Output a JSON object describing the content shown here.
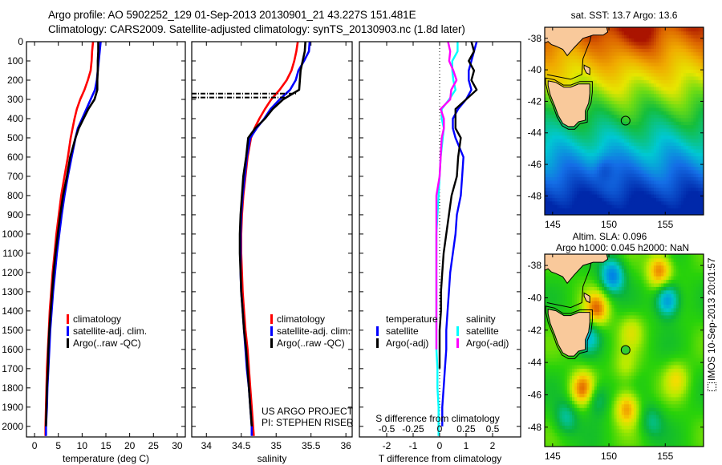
{
  "header": {
    "title_line1": "Argo profile: AO 5902252_129 01-Sep-2013 20130901_21 43.227S 151.481E",
    "title_line2": "Climatology: CARS2009. Satellite-adjusted climatology: synTS_20130903.nc (1.8d later)"
  },
  "stamp": "IMOS 10-Sep-2013 20:01:57",
  "colors": {
    "climatology": "#ff0000",
    "satellite": "#0000ff",
    "argo": "#000000",
    "sal_satellite": "#00ffff",
    "sal_argo": "#ff00ff",
    "land": "#f9c99b"
  },
  "chart_data": [
    {
      "type": "line",
      "id": "temperature",
      "xlabel": "temperature (deg C)",
      "ylabel": "",
      "xlim": [
        -1.7,
        31.7
      ],
      "ylim": [
        2055,
        0
      ],
      "xticks": [
        0,
        5,
        10,
        15,
        20,
        25,
        30
      ],
      "yticks": [
        0,
        100,
        200,
        300,
        400,
        500,
        600,
        700,
        800,
        900,
        1000,
        1100,
        1200,
        1300,
        1400,
        1500,
        1600,
        1700,
        1800,
        1900,
        2000
      ],
      "legend": [
        "climatology",
        "satellite-adj. clim.",
        "Argo(..raw -QC)"
      ],
      "legend_position": "lower-middle",
      "depth": [
        0,
        50,
        100,
        150,
        200,
        250,
        300,
        350,
        400,
        450,
        500,
        600,
        700,
        800,
        900,
        1000,
        1100,
        1200,
        1300,
        1400,
        1500,
        1600,
        1700,
        1800,
        1900,
        2000,
        2050
      ],
      "series": [
        {
          "name": "climatology",
          "values": [
            12.3,
            12.1,
            12.0,
            11.8,
            11.2,
            10.5,
            9.6,
            8.9,
            8.4,
            8.0,
            7.6,
            7.0,
            6.3,
            5.6,
            5.1,
            4.6,
            4.2,
            3.8,
            3.5,
            3.2,
            3.0,
            2.8,
            2.6,
            2.5,
            2.4,
            2.3,
            2.3
          ]
        },
        {
          "name": "satellite-adj. clim.",
          "values": [
            13.9,
            13.7,
            13.5,
            13.3,
            13.1,
            12.7,
            11.8,
            10.9,
            10.0,
            9.1,
            8.6,
            7.8,
            7.0,
            6.3,
            5.7,
            5.2,
            4.7,
            4.3,
            3.9,
            3.6,
            3.3,
            3.1,
            2.9,
            2.7,
            2.6,
            2.4,
            2.4
          ]
        },
        {
          "name": "Argo(..raw -QC)",
          "values": [
            13.4,
            13.4,
            13.3,
            13.3,
            13.2,
            13.2,
            12.6,
            11.3,
            10.3,
            9.3,
            8.6,
            7.5,
            6.8,
            6.0,
            5.4,
            4.9,
            4.4,
            4.0,
            3.7,
            3.4,
            3.1,
            2.9,
            2.8,
            2.6,
            2.5,
            2.4,
            null
          ]
        }
      ]
    },
    {
      "type": "line",
      "id": "salinity",
      "xlabel": "salinity",
      "xlim": [
        33.79,
        36.09
      ],
      "ylim": [
        2055,
        0
      ],
      "xticks": [
        34,
        34.5,
        35,
        35.5,
        36
      ],
      "legend": [
        "climatology",
        "satellite-adj. clim.",
        "Argo(..raw -QC)"
      ],
      "legend_position": "lower-right",
      "annotations": [
        "US ARGO PROJECT",
        "PI: STEPHEN RISER"
      ],
      "depth": [
        0,
        50,
        100,
        150,
        200,
        250,
        300,
        350,
        400,
        450,
        500,
        600,
        700,
        800,
        900,
        1000,
        1100,
        1200,
        1300,
        1400,
        1500,
        1600,
        1700,
        1800,
        1900,
        2000,
        2050
      ],
      "series": [
        {
          "name": "climatology",
          "values": [
            35.31,
            35.29,
            35.26,
            35.22,
            35.15,
            35.05,
            34.93,
            34.84,
            34.76,
            34.69,
            34.64,
            34.59,
            34.56,
            34.53,
            34.51,
            34.5,
            34.5,
            34.51,
            34.52,
            34.54,
            34.56,
            34.59,
            34.61,
            34.63,
            34.65,
            34.67,
            34.68
          ]
        },
        {
          "name": "satellite-adj. clim.",
          "values": [
            35.48,
            35.47,
            35.4,
            35.32,
            35.28,
            35.2,
            35.05,
            34.92,
            34.83,
            34.72,
            34.63,
            34.58,
            34.55,
            34.52,
            34.5,
            34.49,
            34.49,
            34.49,
            34.5,
            34.52,
            34.54,
            34.56,
            34.58,
            34.61,
            34.63,
            34.65,
            34.65
          ]
        },
        {
          "name": "Argo(..raw -QC)",
          "values": [
            35.42,
            35.41,
            35.38,
            35.35,
            35.34,
            35.33,
            35.1,
            34.95,
            34.84,
            34.7,
            34.6,
            34.57,
            34.53,
            34.51,
            34.49,
            34.48,
            34.48,
            34.49,
            34.5,
            34.52,
            34.54,
            34.57,
            34.59,
            34.61,
            34.63,
            34.65,
            null
          ]
        }
      ],
      "flagged_segment": {
        "depths": [
          270,
          290
        ],
        "from": 33.79,
        "to": 35.3
      }
    },
    {
      "type": "line",
      "id": "difference",
      "xlabel": "T difference from climatology",
      "xlabel_top": "S difference from climatology",
      "xlim": [
        -3.03,
        3.06
      ],
      "xlim_top": [
        -0.757,
        0.765
      ],
      "ylim": [
        2055,
        0
      ],
      "xticks": [
        -2,
        -1,
        0,
        1,
        2
      ],
      "xticks_top": [
        -0.5,
        -0.25,
        0,
        0.25,
        0.5
      ],
      "legend_groups": [
        {
          "title": "temperature",
          "items": [
            "satellite",
            "Argo(-adj)"
          ]
        },
        {
          "title": "salinity",
          "items": [
            "satellite",
            "Argo(-adj)"
          ]
        }
      ],
      "depth": [
        0,
        50,
        100,
        150,
        200,
        250,
        300,
        350,
        400,
        450,
        500,
        600,
        700,
        800,
        900,
        1000,
        1100,
        1200,
        1300,
        1400,
        1500,
        1600,
        1700,
        1800,
        1900,
        2000,
        2050
      ],
      "series": [
        {
          "name": "T satellite",
          "axis": "T",
          "values": [
            1.4,
            1.3,
            1.2,
            1.1,
            1.1,
            1.2,
            1.0,
            0.7,
            0.5,
            0.5,
            0.6,
            0.9,
            0.85,
            0.8,
            0.65,
            0.6,
            0.5,
            0.4,
            0.35,
            0.3,
            0.25,
            0.25,
            0.2,
            0.15,
            0.1,
            0.1,
            null
          ]
        },
        {
          "name": "T Argo(-adj)",
          "axis": "T",
          "values": [
            1.2,
            1.3,
            1.1,
            1.3,
            1.2,
            1.4,
            1.0,
            0.6,
            0.6,
            0.6,
            0.8,
            0.7,
            0.65,
            0.45,
            0.35,
            0.25,
            0.15,
            0.1,
            0.05,
            0.05,
            0.0,
            0.0,
            0.0,
            null,
            null,
            null,
            null
          ]
        },
        {
          "name": "S satellite",
          "axis": "S",
          "values": [
            0.17,
            0.17,
            0.12,
            0.12,
            0.13,
            0.15,
            0.09,
            0.02,
            0.02,
            0.04,
            0.03,
            0.01,
            0.0,
            -0.01,
            -0.02,
            -0.03,
            -0.03,
            -0.03,
            -0.03,
            -0.03,
            -0.03,
            -0.03,
            -0.02,
            -0.02,
            -0.01,
            -0.01,
            -0.01
          ]
        },
        {
          "name": "S Argo(-adj)",
          "axis": "S",
          "values": [
            0.08,
            0.1,
            0.09,
            0.13,
            0.16,
            0.11,
            0.1,
            0.01,
            0.04,
            0.04,
            0.02,
            0.01,
            0.0,
            -0.03,
            -0.03,
            -0.03,
            -0.03,
            -0.03,
            -0.03,
            -0.03,
            -0.03,
            -0.03,
            null,
            null,
            null,
            null,
            null
          ]
        }
      ]
    },
    {
      "type": "heatmap",
      "id": "sst_map",
      "title": "sat. SST: 13.7 Argo: 13.6",
      "xlim": [
        144.3,
        158.4
      ],
      "ylim": [
        -49.2,
        -37.3
      ],
      "xticks": [
        145,
        150,
        155
      ],
      "yticks": [
        -38,
        -40,
        -42,
        -44,
        -46,
        -48
      ],
      "argo_position": {
        "lon": 151.481,
        "lat": -43.227
      }
    },
    {
      "type": "heatmap",
      "id": "sla_map",
      "title": "Altim. SLA: 0.096",
      "subtitle": "Argo h1000: 0.045 h2000: NaN",
      "xlim": [
        144.3,
        158.4
      ],
      "ylim": [
        -49.2,
        -37.3
      ],
      "xticks": [
        145,
        150,
        155
      ],
      "yticks": [
        -38,
        -40,
        -42,
        -44,
        -46,
        -48
      ],
      "argo_position": {
        "lon": 151.481,
        "lat": -43.227
      }
    }
  ]
}
